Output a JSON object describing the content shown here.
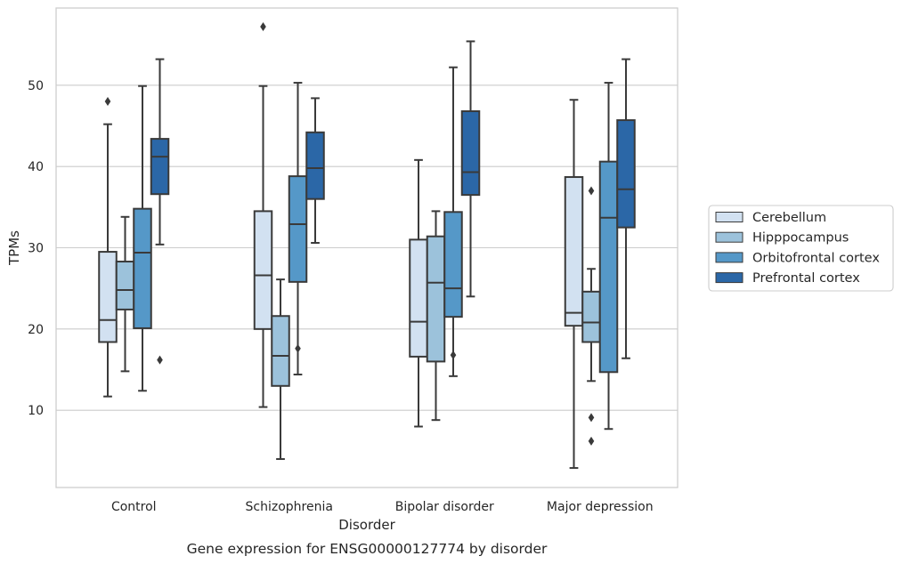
{
  "chart_data": {
    "type": "box",
    "xlabel": "Disorder",
    "ylabel": "TPMs",
    "caption": "Gene expression for ENSG00000127774 by disorder",
    "ylim": [
      0.5,
      59.5
    ],
    "yticks": [
      10,
      20,
      30,
      40,
      50
    ],
    "grid": "horizontal",
    "legend_position": "right",
    "categories": [
      "Control",
      "Schizophrenia",
      "Bipolar disorder",
      "Major depression"
    ],
    "series": [
      {
        "name": "Cerebellum",
        "color": "#d2e1f1",
        "boxes": [
          {
            "whislo": 11.7,
            "q1": 18.4,
            "med": 21.1,
            "q3": 29.5,
            "whishi": 45.2,
            "fliers": [
              48.0
            ]
          },
          {
            "whislo": 10.4,
            "q1": 20.0,
            "med": 26.6,
            "q3": 34.5,
            "whishi": 49.9,
            "fliers": [
              57.2
            ]
          },
          {
            "whislo": 8.0,
            "q1": 16.6,
            "med": 20.9,
            "q3": 31.0,
            "whishi": 40.8,
            "fliers": []
          },
          {
            "whislo": 2.9,
            "q1": 20.4,
            "med": 22.0,
            "q3": 38.7,
            "whishi": 48.2,
            "fliers": []
          }
        ]
      },
      {
        "name": "Hipppocampus",
        "color": "#9cc2db",
        "boxes": [
          {
            "whislo": 14.8,
            "q1": 22.4,
            "med": 24.8,
            "q3": 28.3,
            "whishi": 33.8,
            "fliers": []
          },
          {
            "whislo": 4.0,
            "q1": 13.0,
            "med": 16.7,
            "q3": 21.6,
            "whishi": 26.1,
            "fliers": []
          },
          {
            "whislo": 8.8,
            "q1": 16.0,
            "med": 25.7,
            "q3": 31.4,
            "whishi": 34.5,
            "fliers": []
          },
          {
            "whislo": 13.6,
            "q1": 18.4,
            "med": 20.8,
            "q3": 24.6,
            "whishi": 27.4,
            "fliers": [
              37.0,
              9.1,
              6.2
            ]
          }
        ]
      },
      {
        "name": "Orbitofrontal cortex",
        "color": "#5598c8",
        "boxes": [
          {
            "whislo": 12.4,
            "q1": 20.1,
            "med": 29.4,
            "q3": 34.8,
            "whishi": 49.9,
            "fliers": []
          },
          {
            "whislo": 14.4,
            "q1": 25.8,
            "med": 32.9,
            "q3": 38.8,
            "whishi": 50.3,
            "fliers": [
              17.6
            ]
          },
          {
            "whislo": 14.2,
            "q1": 21.5,
            "med": 25.0,
            "q3": 34.4,
            "whishi": 52.2,
            "fliers": [
              16.8
            ]
          },
          {
            "whislo": 7.7,
            "q1": 14.7,
            "med": 33.7,
            "q3": 40.6,
            "whishi": 50.3,
            "fliers": []
          }
        ]
      },
      {
        "name": "Prefrontal cortex",
        "color": "#2b67a7",
        "boxes": [
          {
            "whislo": 30.4,
            "q1": 36.6,
            "med": 41.2,
            "q3": 43.4,
            "whishi": 53.2,
            "fliers": [
              16.2
            ]
          },
          {
            "whislo": 30.6,
            "q1": 36.0,
            "med": 39.8,
            "q3": 44.2,
            "whishi": 48.4,
            "fliers": []
          },
          {
            "whislo": 24.0,
            "q1": 36.5,
            "med": 39.3,
            "q3": 46.8,
            "whishi": 55.4,
            "fliers": []
          },
          {
            "whislo": 16.4,
            "q1": 32.5,
            "med": 37.2,
            "q3": 45.7,
            "whishi": 53.2,
            "fliers": []
          }
        ]
      }
    ]
  }
}
